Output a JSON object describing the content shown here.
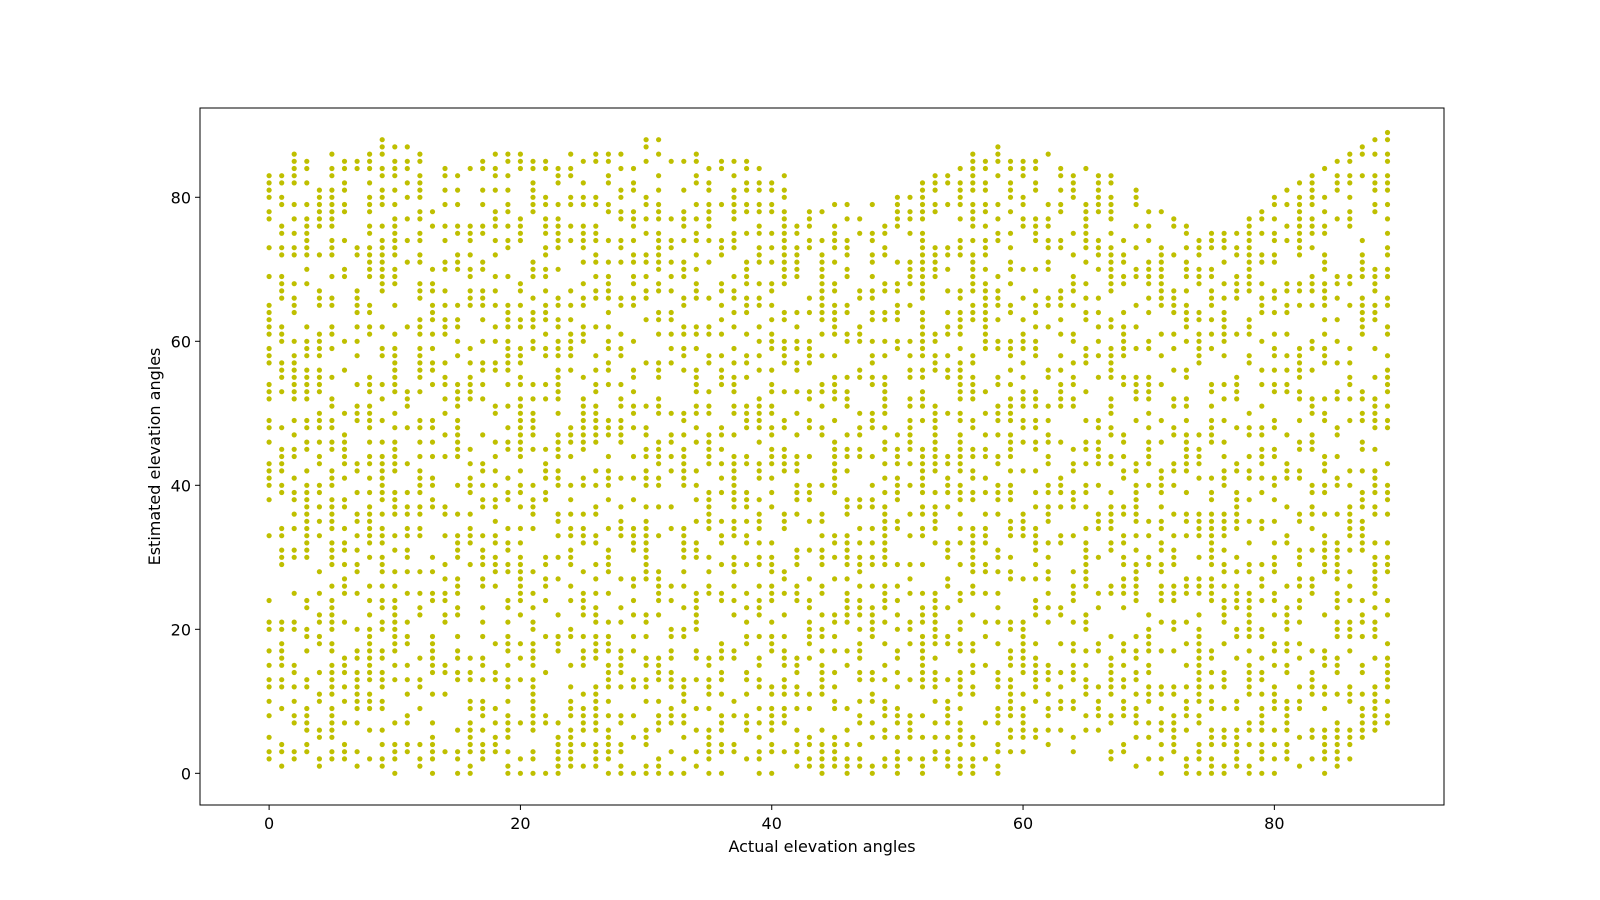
{
  "chart_data": {
    "type": "scatter",
    "title": "",
    "xlabel": "Actual elevation angles",
    "ylabel": "Estimated elevation angles",
    "xlim": [
      -5.5,
      93.5
    ],
    "ylim": [
      -4.4,
      92.4
    ],
    "xticks": [
      0,
      20,
      40,
      60,
      80
    ],
    "yticks": [
      0,
      20,
      40,
      60,
      80
    ],
    "marker_color": "#bfbf00",
    "grid": false,
    "legend": "none",
    "series": [
      {
        "x_range": [
          0,
          89
        ],
        "y_range": [
          0,
          89
        ],
        "envelope_upper": [
          [
            0,
            86
          ],
          [
            3,
            86
          ],
          [
            7,
            88
          ],
          [
            9,
            88
          ],
          [
            12,
            86
          ],
          [
            15,
            83
          ],
          [
            18,
            86
          ],
          [
            22,
            85
          ],
          [
            26,
            86
          ],
          [
            31,
            88
          ],
          [
            33,
            86
          ],
          [
            37,
            85
          ],
          [
            41,
            83
          ],
          [
            44,
            79
          ],
          [
            48,
            79
          ],
          [
            52,
            82
          ],
          [
            55,
            85
          ],
          [
            57,
            87
          ],
          [
            60,
            87
          ],
          [
            62,
            86
          ],
          [
            65,
            84
          ],
          [
            68,
            82
          ],
          [
            71,
            78
          ],
          [
            74,
            75
          ],
          [
            76,
            75
          ],
          [
            78,
            77
          ],
          [
            81,
            81
          ],
          [
            84,
            84
          ],
          [
            87,
            87
          ],
          [
            89,
            89
          ]
        ],
        "envelope_lower": [
          [
            0,
            0
          ],
          [
            10,
            0
          ],
          [
            13,
            0
          ],
          [
            17,
            0
          ],
          [
            20,
            0
          ],
          [
            24,
            0
          ],
          [
            32,
            0
          ],
          [
            42,
            0
          ],
          [
            48,
            0
          ],
          [
            52,
            0
          ],
          [
            58,
            0
          ],
          [
            62,
            2
          ],
          [
            65,
            4
          ],
          [
            68,
            1
          ],
          [
            70,
            0
          ],
          [
            74,
            0
          ],
          [
            80,
            0
          ],
          [
            86,
            0
          ],
          [
            88,
            6
          ]
        ],
        "trend_diagonal": [
          [
            66,
            66
          ],
          [
            70,
            70
          ],
          [
            74,
            74
          ],
          [
            78,
            78
          ],
          [
            82,
            82
          ],
          [
            86,
            86
          ],
          [
            89,
            89
          ]
        ]
      }
    ]
  }
}
